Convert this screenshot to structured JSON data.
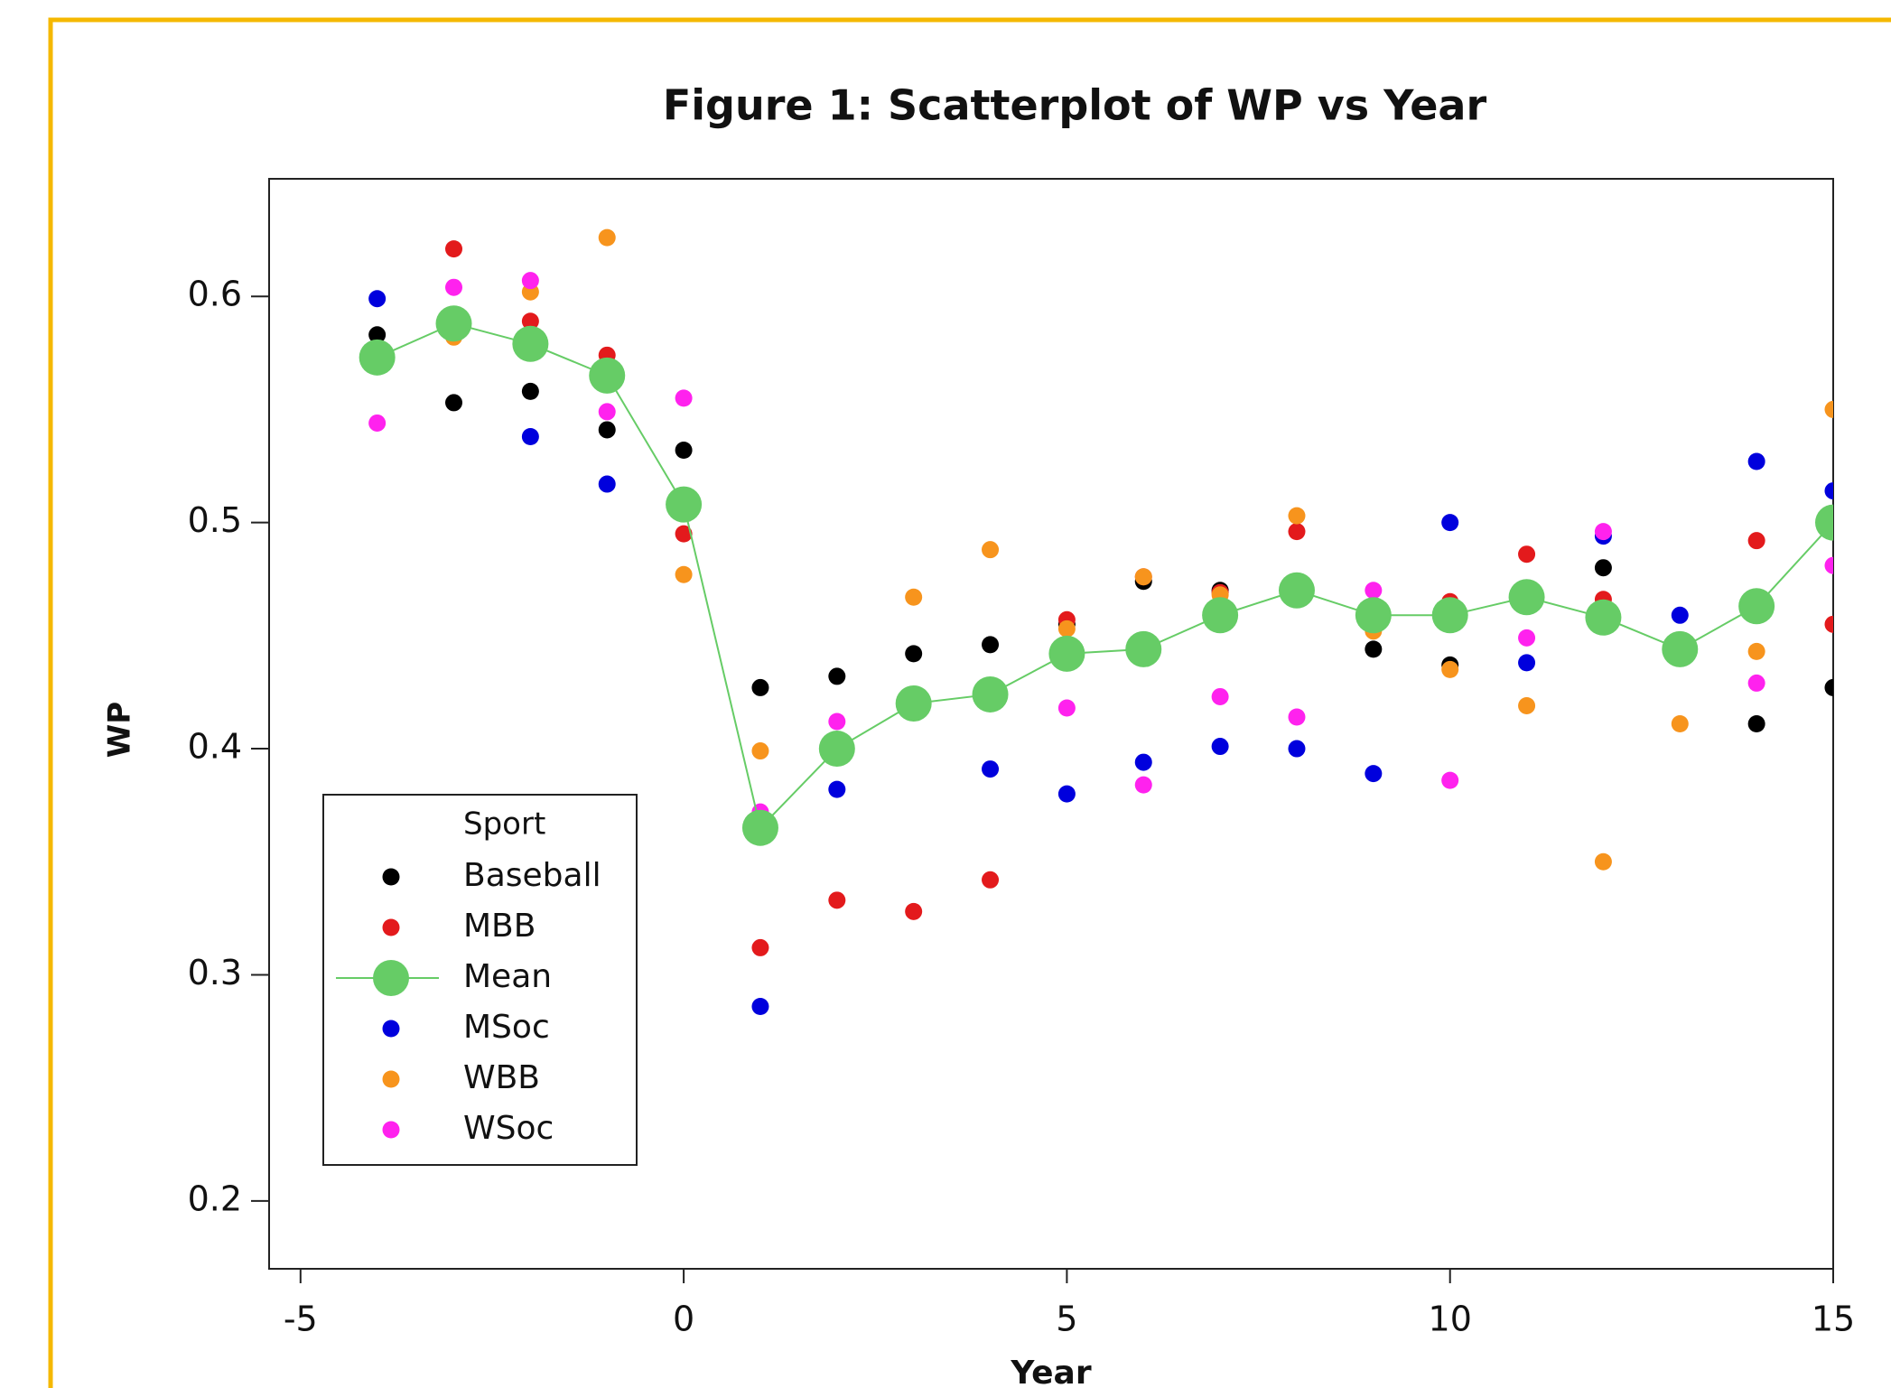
{
  "chart_data": {
    "type": "scatter",
    "title": "Figure 1: Scatterplot of WP vs Year",
    "x_label": "Year",
    "y_label": "WP",
    "legend_title": "Sport",
    "legend_position": "lower left",
    "x": [
      -4,
      -3,
      -2,
      -1,
      0,
      1,
      2,
      3,
      4,
      5,
      6,
      7,
      8,
      9,
      10,
      11,
      12,
      13,
      14,
      15
    ],
    "xlim": [
      -5.41,
      15
    ],
    "xticks": [
      -5,
      0,
      5,
      10,
      15
    ],
    "ylim": [
      0.17,
      0.652
    ],
    "yticks": [
      0.2,
      0.3,
      0.4,
      0.5,
      0.6
    ],
    "series": [
      {
        "name": "Baseball",
        "color": "#000000",
        "values": [
          0.583,
          0.553,
          0.558,
          0.541,
          0.532,
          0.427,
          0.432,
          0.442,
          0.446,
          0.455,
          0.474,
          0.47,
          0.468,
          0.444,
          0.437,
          0.466,
          0.48,
          0.444,
          0.411,
          0.427
        ]
      },
      {
        "name": "MBB",
        "color": "#e31a1c",
        "values": [
          0.575,
          0.621,
          0.589,
          0.574,
          0.495,
          0.312,
          0.333,
          0.328,
          0.342,
          0.457,
          0.476,
          0.469,
          0.496,
          0.46,
          0.465,
          0.486,
          0.466,
          0.444,
          0.492,
          0.455
        ]
      },
      {
        "name": "Mean",
        "color": "#66cc66",
        "line": true,
        "values": [
          0.573,
          0.588,
          0.579,
          0.565,
          0.508,
          0.365,
          0.4,
          0.42,
          0.424,
          0.442,
          0.444,
          0.459,
          0.47,
          0.459,
          0.459,
          0.467,
          0.458,
          0.444,
          0.463,
          0.5
        ]
      },
      {
        "name": "MSoc",
        "color": "#0000dd",
        "values": [
          0.599,
          0.588,
          0.538,
          0.517,
          0.508,
          0.286,
          0.382,
          0.419,
          0.391,
          0.38,
          0.394,
          0.401,
          0.4,
          0.389,
          0.5,
          0.438,
          0.494,
          0.459,
          0.527,
          0.514
        ]
      },
      {
        "name": "WBB",
        "color": "#f7941d",
        "values": [
          0.574,
          0.582,
          0.602,
          0.626,
          0.477,
          0.399,
          0.4,
          0.467,
          0.488,
          0.453,
          0.476,
          0.468,
          0.503,
          0.452,
          0.435,
          0.419,
          0.35,
          0.411,
          0.443,
          0.55
        ]
      },
      {
        "name": "WSoc",
        "color": "#ff22ee",
        "values": [
          0.544,
          0.604,
          0.607,
          0.549,
          0.555,
          0.372,
          0.412,
          0.422,
          0.423,
          0.418,
          0.384,
          0.423,
          0.414,
          0.47,
          0.386,
          0.449,
          0.496,
          0.442,
          0.429,
          0.481
        ]
      }
    ]
  }
}
